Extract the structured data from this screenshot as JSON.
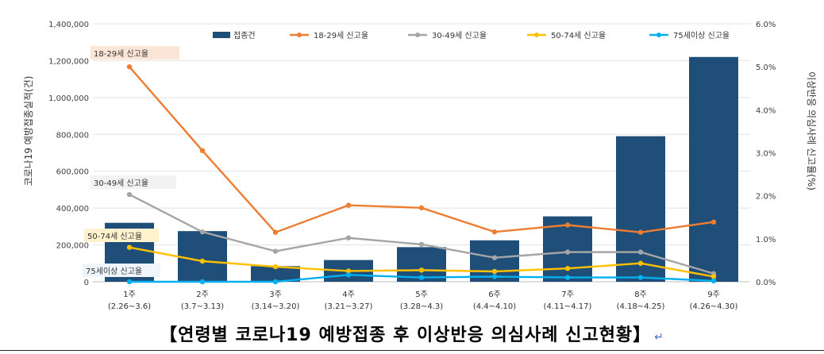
{
  "chart_data": {
    "type": "bar+line",
    "categories": [
      "1주",
      "2주",
      "3주",
      "4주",
      "5주",
      "6주",
      "7주",
      "8주",
      "9주"
    ],
    "category_ranges": [
      "(2.26~3.6)",
      "(3.7~3.13)",
      "(3.14~3.20)",
      "(3.21~3.27)",
      "(3.28~4.3)",
      "(4.4~4.10)",
      "(4.11~4.17)",
      "(4.18~4.25)",
      "(4.26~4.30)"
    ],
    "bars": {
      "name": "접종건",
      "color": "#1f4e79",
      "values": [
        320000,
        275000,
        85000,
        118000,
        188000,
        225000,
        355000,
        790000,
        1220000
      ]
    },
    "series": [
      {
        "name": "18-29세 신고율",
        "color": "#ed7d31",
        "values": [
          5.0,
          3.05,
          1.15,
          1.78,
          1.72,
          1.16,
          1.32,
          1.15,
          1.39
        ]
      },
      {
        "name": "30-49세 신고율",
        "color": "#a5a5a5",
        "values": [
          2.03,
          1.16,
          0.71,
          1.02,
          0.87,
          0.56,
          0.69,
          0.69,
          0.19
        ]
      },
      {
        "name": "50-74세 신고율",
        "color": "#ffc000",
        "values": [
          0.8,
          0.48,
          0.35,
          0.25,
          0.27,
          0.24,
          0.31,
          0.43,
          0.12
        ]
      },
      {
        "name": "75세이상 신고율",
        "color": "#00b0f0",
        "values": [
          0.0,
          0.0,
          0.0,
          0.16,
          0.1,
          0.12,
          0.1,
          0.1,
          0.02
        ]
      }
    ],
    "y_left": {
      "label": "코로나19 예방접종실적(건)",
      "ylim": [
        0,
        1400000
      ],
      "ticks": [
        "0",
        "200,000",
        "400,000",
        "600,000",
        "800,000",
        "1,000,000",
        "1,200,000",
        "1,400,000"
      ]
    },
    "y_right": {
      "label": "이상반응 의심사례 신고율(%)",
      "ylim": [
        0,
        6.0
      ],
      "ticks": [
        "0.0%",
        "1.0%",
        "2.0%",
        "3.0%",
        "4.0%",
        "5.0%",
        "6.0%"
      ]
    },
    "callouts": [
      "18-29세 신고율",
      "30-49세 신고율",
      "50-74세 신고율",
      "75세이상 신고율"
    ],
    "legend_position": "top",
    "grid": true
  },
  "caption": {
    "text": "【연령별 코로나19 예방접종 후 이상반응 의심사례 신고현황】",
    "return_mark": "↵"
  }
}
